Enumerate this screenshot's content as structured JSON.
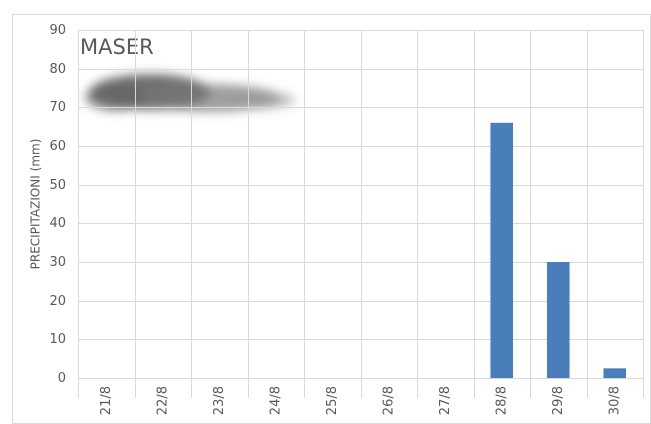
{
  "chart_data": {
    "type": "bar",
    "title": "MASER",
    "y_label": "PRECIPITAZIONI (mm)",
    "categories": [
      "21/8",
      "22/8",
      "23/8",
      "24/8",
      "25/8",
      "26/8",
      "27/8",
      "28/8",
      "29/8",
      "30/8"
    ],
    "values": [
      0,
      0,
      0,
      0,
      0,
      0,
      0,
      66,
      30,
      2.5
    ],
    "color": "#4a7ebb",
    "ylim": [
      0,
      90
    ],
    "yticks": [
      0,
      10,
      20,
      30,
      40,
      50,
      60,
      70,
      80,
      90
    ],
    "grid": true
  }
}
